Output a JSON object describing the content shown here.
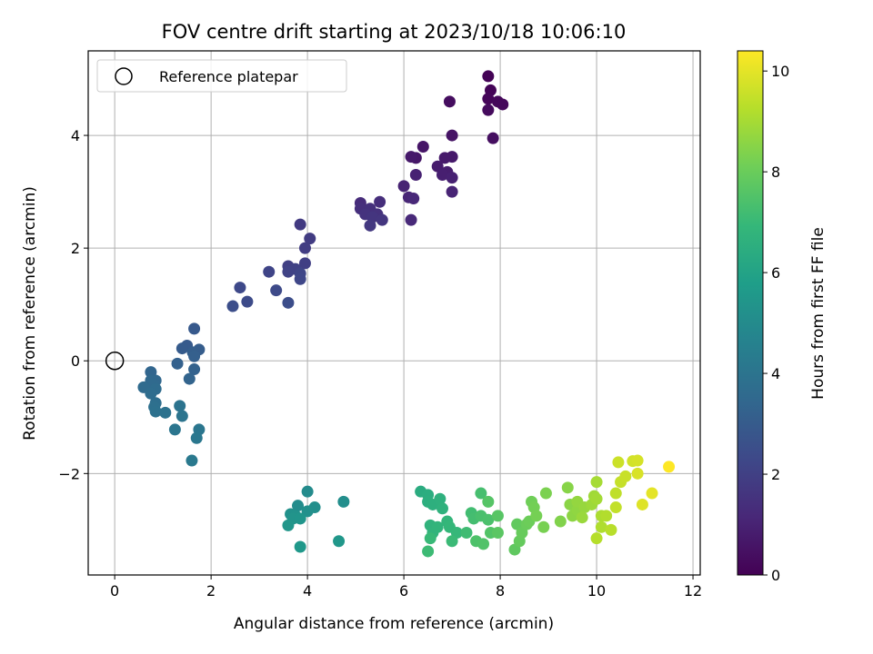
{
  "chart_data": {
    "type": "scatter",
    "title": "FOV centre drift starting at 2023/10/18 10:06:10",
    "xlabel": "Angular distance from reference (arcmin)",
    "ylabel": "Rotation from reference (arcmin)",
    "xlim": [
      -0.55,
      12.15
    ],
    "ylim": [
      -3.8,
      5.5
    ],
    "xticks": [
      0,
      2,
      4,
      6,
      8,
      10,
      12
    ],
    "yticks": [
      -2,
      0,
      2,
      4
    ],
    "grid": true,
    "legend": {
      "placement": "top-left",
      "entries": [
        "Reference platepar"
      ]
    },
    "reference_point": {
      "x": 0,
      "y": 0,
      "label": "Reference platepar",
      "marker": "hollow-circle"
    },
    "colorbar": {
      "label": "Hours from first FF file",
      "colormap": "viridis",
      "range": [
        0,
        10.4
      ],
      "ticks": [
        0,
        2,
        4,
        6,
        8,
        10
      ]
    },
    "colormap_stops": [
      "#440154",
      "#482878",
      "#3e4989",
      "#31688e",
      "#26828e",
      "#1f9e89",
      "#35b779",
      "#6ece58",
      "#b5de2b",
      "#fde725"
    ],
    "points": [
      [
        7.75,
        5.05,
        0.05
      ],
      [
        7.8,
        4.8,
        0.1
      ],
      [
        7.75,
        4.65,
        0.15
      ],
      [
        7.95,
        4.6,
        0.2
      ],
      [
        8.05,
        4.55,
        0.22
      ],
      [
        7.75,
        4.45,
        0.3
      ],
      [
        6.95,
        4.6,
        0.35
      ],
      [
        7.85,
        3.95,
        0.4
      ],
      [
        7.0,
        4.0,
        0.55
      ],
      [
        6.4,
        3.8,
        0.6
      ],
      [
        6.25,
        3.6,
        0.65
      ],
      [
        6.15,
        3.62,
        0.7
      ],
      [
        7.0,
        3.62,
        0.72
      ],
      [
        6.85,
        3.6,
        0.75
      ],
      [
        6.7,
        3.45,
        0.8
      ],
      [
        6.9,
        3.35,
        0.85
      ],
      [
        6.8,
        3.3,
        0.9
      ],
      [
        7.0,
        3.25,
        0.95
      ],
      [
        6.25,
        3.3,
        0.98
      ],
      [
        6.0,
        3.1,
        1.0
      ],
      [
        7.0,
        3.0,
        1.05
      ],
      [
        6.1,
        2.9,
        1.1
      ],
      [
        6.2,
        2.88,
        1.15
      ],
      [
        6.15,
        2.5,
        1.2
      ],
      [
        5.1,
        2.8,
        1.3
      ],
      [
        5.5,
        2.82,
        1.35
      ],
      [
        5.1,
        2.7,
        1.4
      ],
      [
        5.3,
        2.7,
        1.45
      ],
      [
        5.45,
        2.6,
        1.5
      ],
      [
        5.2,
        2.6,
        1.55
      ],
      [
        5.35,
        2.55,
        1.6
      ],
      [
        5.55,
        2.5,
        1.65
      ],
      [
        5.3,
        2.4,
        1.7
      ],
      [
        3.85,
        2.42,
        1.8
      ],
      [
        4.05,
        2.17,
        1.85
      ],
      [
        3.95,
        2.0,
        1.9
      ],
      [
        3.95,
        1.73,
        1.95
      ],
      [
        3.6,
        1.68,
        2.0
      ],
      [
        3.75,
        1.63,
        2.05
      ],
      [
        3.6,
        1.58,
        2.1
      ],
      [
        3.2,
        1.58,
        2.15
      ],
      [
        3.85,
        1.55,
        2.2
      ],
      [
        3.85,
        1.45,
        2.25
      ],
      [
        2.6,
        1.3,
        2.3
      ],
      [
        3.35,
        1.25,
        2.35
      ],
      [
        2.75,
        1.05,
        2.4
      ],
      [
        3.6,
        1.03,
        2.45
      ],
      [
        2.45,
        0.97,
        2.5
      ],
      [
        1.65,
        0.57,
        2.9
      ],
      [
        1.5,
        0.27,
        2.95
      ],
      [
        1.4,
        0.22,
        3.0
      ],
      [
        1.75,
        0.2,
        3.05
      ],
      [
        1.62,
        0.15,
        3.1
      ],
      [
        1.65,
        0.08,
        3.15
      ],
      [
        1.3,
        -0.05,
        3.2
      ],
      [
        1.65,
        -0.15,
        3.25
      ],
      [
        1.55,
        -0.32,
        3.3
      ],
      [
        0.75,
        -0.2,
        3.4
      ],
      [
        0.85,
        -0.35,
        3.45
      ],
      [
        0.75,
        -0.35,
        3.5
      ],
      [
        0.8,
        -0.42,
        3.55
      ],
      [
        0.6,
        -0.47,
        3.6
      ],
      [
        0.85,
        -0.5,
        3.65
      ],
      [
        0.75,
        -0.58,
        3.7
      ],
      [
        0.85,
        -0.75,
        3.75
      ],
      [
        0.82,
        -0.82,
        3.8
      ],
      [
        0.85,
        -0.9,
        3.85
      ],
      [
        1.05,
        -0.92,
        3.9
      ],
      [
        1.35,
        -0.8,
        3.95
      ],
      [
        1.4,
        -0.98,
        4.0
      ],
      [
        1.25,
        -1.22,
        4.05
      ],
      [
        1.75,
        -1.22,
        4.1
      ],
      [
        1.7,
        -1.37,
        4.15
      ],
      [
        1.6,
        -1.77,
        4.2
      ],
      [
        4.0,
        -2.32,
        5.0
      ],
      [
        3.8,
        -2.57,
        5.05
      ],
      [
        4.75,
        -2.5,
        5.1
      ],
      [
        4.15,
        -2.6,
        5.15
      ],
      [
        4.0,
        -2.67,
        5.2
      ],
      [
        3.65,
        -2.72,
        5.25
      ],
      [
        3.75,
        -2.75,
        5.3
      ],
      [
        3.7,
        -2.8,
        5.35
      ],
      [
        3.85,
        -2.8,
        5.4
      ],
      [
        3.6,
        -2.92,
        5.45
      ],
      [
        4.65,
        -3.2,
        5.5
      ],
      [
        3.85,
        -3.3,
        5.55
      ],
      [
        6.35,
        -2.32,
        6.4
      ],
      [
        6.5,
        -2.38,
        6.45
      ],
      [
        6.5,
        -2.5,
        6.5
      ],
      [
        6.6,
        -2.55,
        6.55
      ],
      [
        6.75,
        -2.45,
        6.6
      ],
      [
        6.8,
        -2.62,
        6.65
      ],
      [
        6.55,
        -2.92,
        6.7
      ],
      [
        6.6,
        -3.05,
        6.75
      ],
      [
        6.7,
        -2.95,
        6.8
      ],
      [
        6.9,
        -2.85,
        6.85
      ],
      [
        6.95,
        -2.95,
        6.9
      ],
      [
        7.1,
        -3.05,
        6.95
      ],
      [
        6.55,
        -3.15,
        7.0
      ],
      [
        7.0,
        -3.2,
        7.05
      ],
      [
        6.5,
        -3.38,
        7.1
      ],
      [
        7.3,
        -3.05,
        7.15
      ],
      [
        7.4,
        -2.7,
        7.2
      ],
      [
        7.45,
        -2.8,
        7.25
      ],
      [
        7.6,
        -2.35,
        7.3
      ],
      [
        7.6,
        -2.75,
        7.35
      ],
      [
        7.75,
        -2.82,
        7.4
      ],
      [
        7.5,
        -3.2,
        7.45
      ],
      [
        7.65,
        -3.25,
        7.5
      ],
      [
        7.8,
        -3.05,
        7.55
      ],
      [
        7.75,
        -2.5,
        7.6
      ],
      [
        7.95,
        -2.75,
        7.65
      ],
      [
        7.95,
        -3.05,
        7.7
      ],
      [
        8.3,
        -3.35,
        7.8
      ],
      [
        8.35,
        -2.9,
        7.85
      ],
      [
        8.4,
        -3.2,
        7.9
      ],
      [
        8.45,
        -3.05,
        7.95
      ],
      [
        8.55,
        -2.9,
        8.0
      ],
      [
        8.6,
        -2.85,
        8.05
      ],
      [
        8.65,
        -2.5,
        8.1
      ],
      [
        8.7,
        -2.6,
        8.15
      ],
      [
        8.75,
        -2.75,
        8.2
      ],
      [
        8.9,
        -2.95,
        8.25
      ],
      [
        8.95,
        -2.35,
        8.3
      ],
      [
        9.25,
        -2.85,
        8.4
      ],
      [
        9.4,
        -2.25,
        8.5
      ],
      [
        9.45,
        -2.55,
        8.55
      ],
      [
        9.5,
        -2.75,
        8.6
      ],
      [
        9.6,
        -2.65,
        8.65
      ],
      [
        9.6,
        -2.5,
        8.7
      ],
      [
        9.75,
        -2.6,
        8.75
      ],
      [
        9.7,
        -2.78,
        8.8
      ],
      [
        9.9,
        -2.55,
        8.85
      ],
      [
        9.95,
        -2.4,
        8.9
      ],
      [
        10.0,
        -2.45,
        8.95
      ],
      [
        10.0,
        -2.15,
        9.0
      ],
      [
        10.1,
        -2.75,
        9.1
      ],
      [
        10.1,
        -2.95,
        9.15
      ],
      [
        10.2,
        -2.75,
        9.2
      ],
      [
        10.0,
        -3.15,
        9.25
      ],
      [
        10.3,
        -3.0,
        9.3
      ],
      [
        10.4,
        -2.35,
        9.4
      ],
      [
        10.4,
        -2.6,
        9.45
      ],
      [
        10.5,
        -2.15,
        9.5
      ],
      [
        10.6,
        -2.05,
        9.55
      ],
      [
        10.45,
        -1.8,
        9.6
      ],
      [
        10.75,
        -1.78,
        9.7
      ],
      [
        10.85,
        -1.77,
        9.75
      ],
      [
        10.85,
        -2.0,
        9.8
      ],
      [
        10.95,
        -2.55,
        9.9
      ],
      [
        11.15,
        -2.35,
        10.0
      ],
      [
        11.5,
        -1.88,
        10.4
      ]
    ]
  }
}
